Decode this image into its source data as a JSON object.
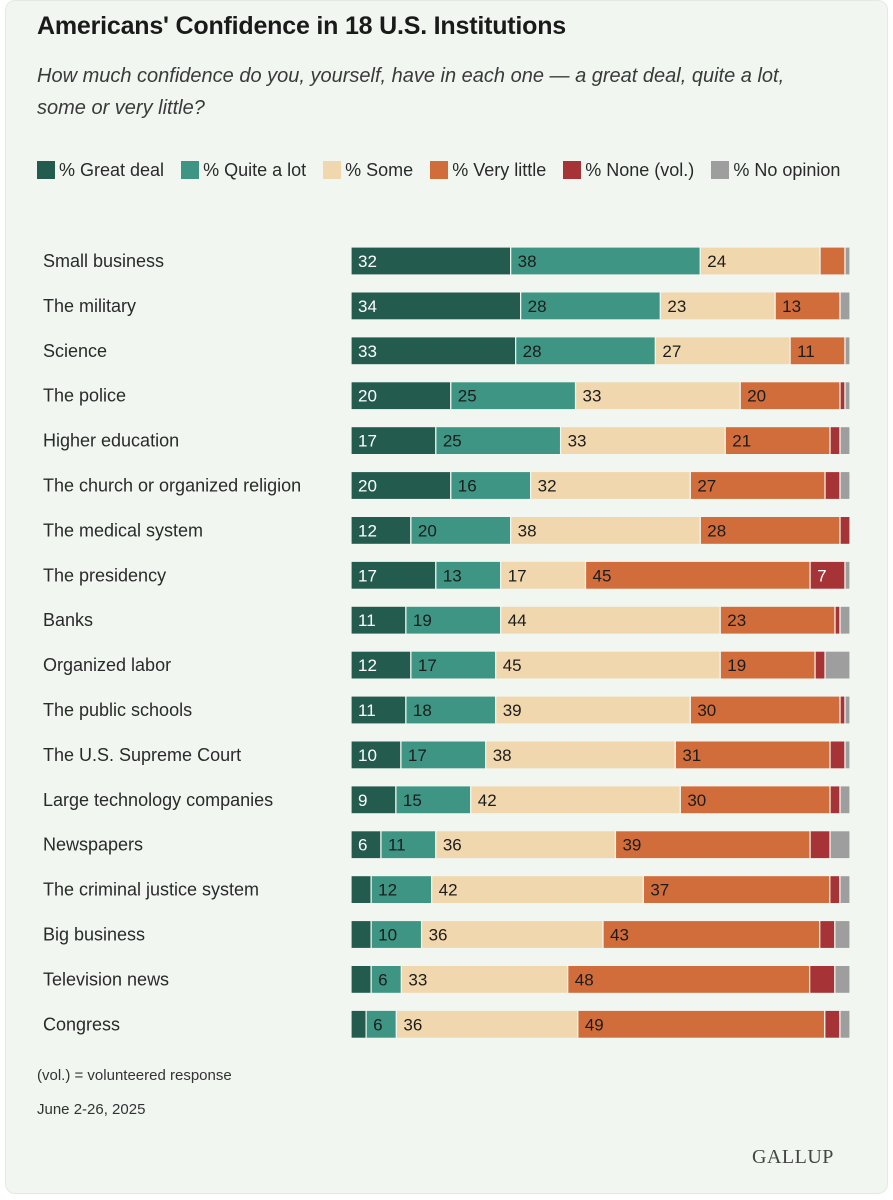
{
  "chart_data": {
    "type": "bar",
    "orientation": "horizontal",
    "stacked": true,
    "title": "Americans' Confidence in 18 U.S. Institutions",
    "subtitle": "How much confidence do you, yourself, have in each one — a great deal, quite a lot, some or very little?",
    "legend_placement": "top",
    "categories": [
      "Small business",
      "The military",
      "Science",
      "The police",
      "Higher education",
      "The church or organized religion",
      "The medical system",
      "The presidency",
      "Banks",
      "Organized labor",
      "The public schools",
      "The U.S. Supreme Court",
      "Large technology companies",
      "Newspapers",
      "The criminal justice system",
      "Big business",
      "Television news",
      "Congress"
    ],
    "series": [
      {
        "name": "% Great deal",
        "color": "#245b4f",
        "values": [
          32,
          34,
          33,
          20,
          17,
          20,
          12,
          17,
          11,
          12,
          11,
          10,
          9,
          6,
          4,
          4,
          4,
          3
        ]
      },
      {
        "name": "% Quite a lot",
        "color": "#3f9583",
        "values": [
          38,
          28,
          28,
          25,
          25,
          16,
          20,
          13,
          19,
          17,
          18,
          17,
          15,
          11,
          12,
          10,
          6,
          6
        ]
      },
      {
        "name": "% Some",
        "color": "#f1d7ae",
        "values": [
          24,
          23,
          27,
          33,
          33,
          32,
          38,
          17,
          44,
          45,
          39,
          38,
          42,
          36,
          42,
          36,
          33,
          36
        ]
      },
      {
        "name": "% Very little",
        "color": "#d16c3b",
        "values": [
          5,
          13,
          11,
          20,
          21,
          27,
          28,
          45,
          23,
          19,
          30,
          31,
          30,
          39,
          37,
          43,
          48,
          49
        ]
      },
      {
        "name": "% None (vol.)",
        "color": "#a63436",
        "values": [
          0,
          0,
          0,
          1,
          2,
          3,
          2,
          7,
          1,
          2,
          1,
          3,
          2,
          4,
          2,
          3,
          5,
          3
        ]
      },
      {
        "name": "% No opinion",
        "color": "#9e9e9e",
        "values": [
          1,
          2,
          1,
          1,
          2,
          2,
          0,
          1,
          2,
          5,
          1,
          1,
          2,
          4,
          2,
          3,
          3,
          2
        ]
      }
    ],
    "shown_labels": [
      [
        32,
        38,
        24,
        null,
        null,
        null
      ],
      [
        34,
        28,
        23,
        13,
        null,
        null
      ],
      [
        33,
        28,
        27,
        11,
        null,
        null
      ],
      [
        20,
        25,
        33,
        20,
        null,
        null
      ],
      [
        17,
        25,
        33,
        21,
        null,
        null
      ],
      [
        20,
        16,
        32,
        27,
        null,
        null
      ],
      [
        12,
        20,
        38,
        28,
        null,
        null
      ],
      [
        17,
        13,
        17,
        45,
        7,
        null
      ],
      [
        11,
        19,
        44,
        23,
        null,
        null
      ],
      [
        12,
        17,
        45,
        19,
        null,
        null
      ],
      [
        11,
        18,
        39,
        30,
        null,
        null
      ],
      [
        10,
        17,
        38,
        31,
        null,
        null
      ],
      [
        9,
        15,
        42,
        30,
        null,
        null
      ],
      [
        6,
        11,
        36,
        39,
        null,
        null
      ],
      [
        null,
        12,
        42,
        37,
        null,
        null
      ],
      [
        null,
        10,
        36,
        43,
        null,
        null
      ],
      [
        null,
        6,
        33,
        48,
        null,
        null
      ],
      [
        null,
        6,
        36,
        49,
        null,
        null
      ]
    ],
    "xlim": [
      0,
      100
    ],
    "grid": false
  },
  "footnote": "(vol.) = volunteered response",
  "date": "June 2-26, 2025",
  "brand": "GALLUP"
}
